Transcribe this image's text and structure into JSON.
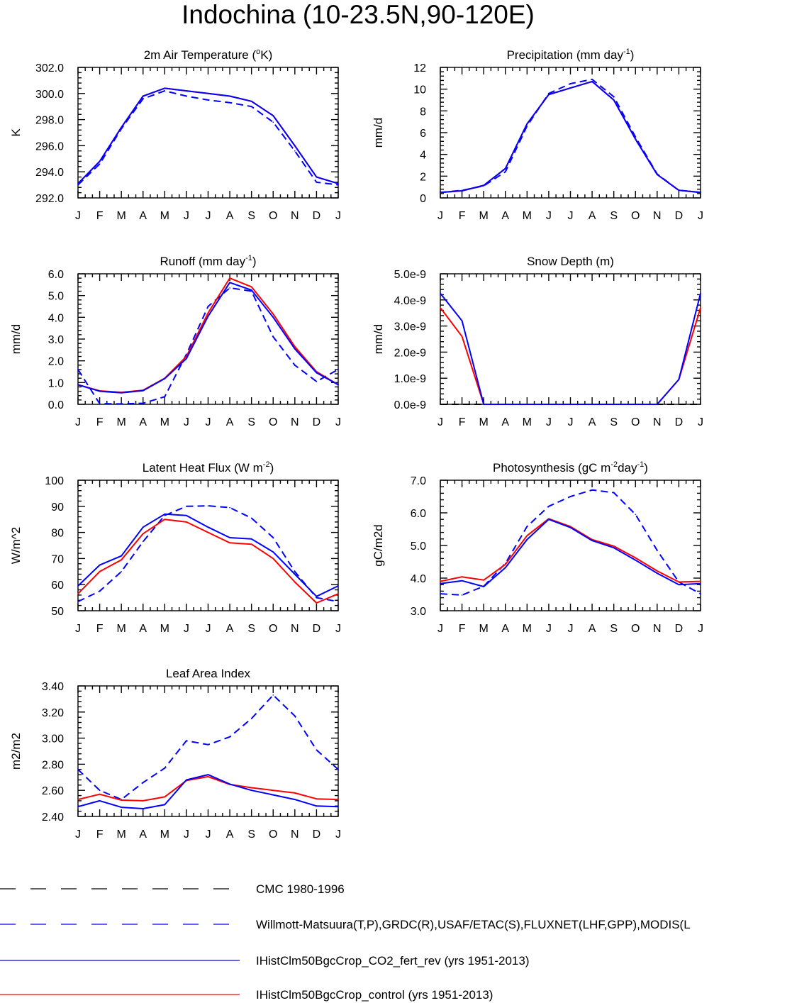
{
  "figure": {
    "title": "Indochina (10-23.5N,90-120E)"
  },
  "colors": {
    "cmc": "#000000",
    "obs": "#0000ff",
    "co2_fert_rev": "#0000ff",
    "control": "#ff0000"
  },
  "legend": [
    {
      "label": "CMC 1980-1996",
      "color": "#000000",
      "dash": true
    },
    {
      "label": "Willmott-Matsuura(T,P),GRDC(R),USAF/ETAC(S),FLUXNET(LHF,GPP),MODIS(L",
      "color": "#0000ff",
      "dash": true
    },
    {
      "label": "IHistClm50BgcCrop_CO2_fert_rev (yrs 1951-2013)",
      "color": "#0000ff",
      "dash": false
    },
    {
      "label": "IHistClm50BgcCrop_control (yrs 1951-2013)",
      "color": "#ff0000",
      "dash": false
    }
  ],
  "chart_data": [
    {
      "type": "line",
      "title": "2m Air Temperature (°K)",
      "title_parts": [
        "2m Air Temperature (",
        "o",
        "K)"
      ],
      "ylabel": "K",
      "xlabel": "",
      "categories": [
        "J",
        "F",
        "M",
        "A",
        "M",
        "J",
        "J",
        "A",
        "S",
        "O",
        "N",
        "D",
        "J"
      ],
      "ylim": [
        292,
        302
      ],
      "yticks": [
        292,
        294,
        296,
        298,
        300,
        302
      ],
      "ytick_labels": [
        "292.0",
        "294.0",
        "296.0",
        "298.0",
        "300.0",
        "302.0"
      ],
      "series": [
        {
          "id": "obs",
          "style": "dashed",
          "color": "#0000ff",
          "values": [
            293.0,
            294.6,
            297.3,
            299.6,
            300.2,
            299.8,
            299.5,
            299.3,
            299.0,
            297.8,
            295.6,
            293.2,
            293.0
          ]
        },
        {
          "id": "control",
          "style": "solid",
          "color": "#ff0000",
          "values": [
            293.1,
            294.8,
            297.4,
            299.8,
            300.4,
            300.2,
            300.0,
            299.8,
            299.4,
            298.3,
            296.0,
            293.6,
            293.1
          ]
        },
        {
          "id": "co2_fert_rev",
          "style": "solid",
          "color": "#0000ff",
          "values": [
            293.1,
            294.8,
            297.4,
            299.8,
            300.4,
            300.2,
            300.0,
            299.8,
            299.4,
            298.3,
            296.0,
            293.6,
            293.1
          ]
        }
      ]
    },
    {
      "type": "line",
      "title": "Precipitation (mm day-1)",
      "title_parts": [
        "Precipitation (mm day",
        "-1",
        ")"
      ],
      "ylabel": "mm/d",
      "xlabel": "",
      "categories": [
        "J",
        "F",
        "M",
        "A",
        "M",
        "J",
        "J",
        "A",
        "S",
        "O",
        "N",
        "D",
        "J"
      ],
      "ylim": [
        0,
        12
      ],
      "yticks": [
        0,
        2,
        4,
        6,
        8,
        10,
        12
      ],
      "ytick_labels": [
        "0",
        "2",
        "4",
        "6",
        "8",
        "10",
        "12"
      ],
      "series": [
        {
          "id": "obs",
          "style": "dashed",
          "color": "#0000ff",
          "values": [
            0.5,
            0.7,
            1.1,
            2.4,
            6.6,
            9.6,
            10.5,
            10.9,
            9.3,
            5.6,
            2.2,
            0.7,
            0.5
          ]
        },
        {
          "id": "control",
          "style": "solid",
          "color": "#ff0000",
          "values": [
            0.5,
            0.65,
            1.15,
            2.7,
            6.8,
            9.5,
            10.1,
            10.7,
            9.0,
            5.4,
            2.15,
            0.7,
            0.5
          ]
        },
        {
          "id": "co2_fert_rev",
          "style": "solid",
          "color": "#0000ff",
          "values": [
            0.5,
            0.65,
            1.15,
            2.7,
            6.8,
            9.5,
            10.1,
            10.7,
            9.0,
            5.4,
            2.15,
            0.7,
            0.5
          ]
        }
      ]
    },
    {
      "type": "line",
      "title": "Runoff (mm day-1)",
      "title_parts": [
        "Runoff (mm day",
        "-1",
        ")"
      ],
      "ylabel": "mm/d",
      "xlabel": "",
      "categories": [
        "J",
        "F",
        "M",
        "A",
        "M",
        "J",
        "J",
        "A",
        "S",
        "O",
        "N",
        "D",
        "J"
      ],
      "ylim": [
        0,
        6
      ],
      "yticks": [
        0,
        1,
        2,
        3,
        4,
        5,
        6
      ],
      "ytick_labels": [
        "0.0",
        "1.0",
        "2.0",
        "3.0",
        "4.0",
        "5.0",
        "6.0"
      ],
      "series": [
        {
          "id": "obs",
          "style": "dashed",
          "color": "#0000ff",
          "values": [
            1.6,
            0.03,
            0.02,
            0.05,
            0.35,
            2.3,
            4.5,
            5.35,
            5.2,
            3.1,
            1.8,
            1.05,
            1.6
          ]
        },
        {
          "id": "control",
          "style": "solid",
          "color": "#ff0000",
          "values": [
            0.9,
            0.62,
            0.55,
            0.65,
            1.2,
            2.2,
            4.2,
            5.8,
            5.4,
            4.15,
            2.65,
            1.5,
            0.9
          ]
        },
        {
          "id": "co2_fert_rev",
          "style": "solid",
          "color": "#0000ff",
          "values": [
            0.9,
            0.6,
            0.53,
            0.63,
            1.18,
            2.1,
            4.05,
            5.6,
            5.25,
            4.0,
            2.55,
            1.45,
            0.9
          ]
        }
      ]
    },
    {
      "type": "line",
      "title": "Snow Depth (m)",
      "title_parts": [
        "Snow Depth (m)",
        "",
        ""
      ],
      "ylabel": "mm/d",
      "xlabel": "",
      "categories": [
        "J",
        "F",
        "M",
        "A",
        "M",
        "J",
        "J",
        "A",
        "S",
        "O",
        "N",
        "D",
        "J"
      ],
      "ylim": [
        0,
        5e-09
      ],
      "yticks": [
        0,
        1e-09,
        2e-09,
        3e-09,
        4e-09,
        5e-09
      ],
      "ytick_labels": [
        "0.0e-9",
        "1.0e-9",
        "2.0e-9",
        "3.0e-9",
        "4.0e-9",
        "5.0e-9"
      ],
      "series": [
        {
          "id": "cmc",
          "style": "dashed",
          "color": "#000000",
          "values": [
            0,
            0,
            0,
            0,
            0,
            0,
            0,
            0,
            0,
            0,
            0,
            0,
            0
          ]
        },
        {
          "id": "control",
          "style": "solid",
          "color": "#ff0000",
          "values": [
            3.7e-09,
            2.6e-09,
            0,
            0,
            0,
            0,
            0,
            0,
            0,
            0,
            0,
            9.5e-10,
            3.7e-09
          ]
        },
        {
          "id": "co2_fert_rev",
          "style": "solid",
          "color": "#0000ff",
          "values": [
            4.25e-09,
            3.2e-09,
            0,
            0,
            0,
            0,
            0,
            0,
            0,
            0,
            0,
            9.5e-10,
            4.25e-09
          ]
        }
      ]
    },
    {
      "type": "line",
      "title": "Latent Heat Flux (W m-2)",
      "title_parts": [
        "Latent Heat Flux (W m",
        "-2",
        ")"
      ],
      "ylabel": "W/m^2",
      "xlabel": "",
      "categories": [
        "J",
        "F",
        "M",
        "A",
        "M",
        "J",
        "J",
        "A",
        "S",
        "O",
        "N",
        "D",
        "J"
      ],
      "ylim": [
        50,
        100
      ],
      "yticks": [
        50,
        60,
        70,
        80,
        90,
        100
      ],
      "ytick_labels": [
        "50",
        "60",
        "70",
        "80",
        "90",
        "100"
      ],
      "series": [
        {
          "id": "obs",
          "style": "dashed",
          "color": "#0000ff",
          "values": [
            53.5,
            57.5,
            65.0,
            76.5,
            86.5,
            90.0,
            90.2,
            89.5,
            85.5,
            78.0,
            65.0,
            55.0,
            53.5
          ]
        },
        {
          "id": "control",
          "style": "solid",
          "color": "#ff0000",
          "values": [
            56.5,
            65.0,
            69.5,
            79.5,
            85.0,
            84.0,
            80.0,
            76.0,
            75.5,
            70.0,
            61.0,
            53.0,
            56.5
          ]
        },
        {
          "id": "co2_fert_rev",
          "style": "solid",
          "color": "#0000ff",
          "values": [
            59.5,
            67.5,
            71.0,
            82.0,
            87.0,
            86.5,
            82.0,
            78.0,
            77.5,
            72.5,
            64.0,
            55.5,
            59.5
          ]
        }
      ]
    },
    {
      "type": "line",
      "title": "Photosynthesis (gC m-2day-1)",
      "title_parts": [
        "Photosynthesis (gC m",
        "-2",
        "day",
        "-1",
        ")"
      ],
      "ylabel": "gC/m2d",
      "xlabel": "",
      "categories": [
        "J",
        "F",
        "M",
        "A",
        "M",
        "J",
        "J",
        "A",
        "S",
        "O",
        "N",
        "D",
        "J"
      ],
      "ylim": [
        3,
        7
      ],
      "yticks": [
        3,
        4,
        5,
        6,
        7
      ],
      "ytick_labels": [
        "3.0",
        "4.0",
        "5.0",
        "6.0",
        "7.0"
      ],
      "series": [
        {
          "id": "obs",
          "style": "dashed",
          "color": "#0000ff",
          "values": [
            3.52,
            3.48,
            3.75,
            4.45,
            5.58,
            6.2,
            6.5,
            6.7,
            6.62,
            5.95,
            4.85,
            3.88,
            3.52
          ]
        },
        {
          "id": "control",
          "style": "solid",
          "color": "#ff0000",
          "values": [
            3.9,
            4.04,
            3.94,
            4.42,
            5.3,
            5.82,
            5.58,
            5.18,
            4.98,
            4.62,
            4.22,
            3.88,
            3.9
          ]
        },
        {
          "id": "co2_fert_rev",
          "style": "solid",
          "color": "#0000ff",
          "values": [
            3.83,
            3.92,
            3.74,
            4.32,
            5.18,
            5.8,
            5.55,
            5.15,
            4.93,
            4.55,
            4.15,
            3.8,
            3.83
          ]
        }
      ]
    },
    {
      "type": "line",
      "title": "Leaf Area Index",
      "title_parts": [
        "Leaf Area Index",
        "",
        ""
      ],
      "ylabel": "m2/m2",
      "xlabel": "",
      "categories": [
        "J",
        "F",
        "M",
        "A",
        "M",
        "J",
        "J",
        "A",
        "S",
        "O",
        "N",
        "D",
        "J"
      ],
      "ylim": [
        2.4,
        3.4
      ],
      "yticks": [
        2.4,
        2.6,
        2.8,
        3.0,
        3.2,
        3.4
      ],
      "ytick_labels": [
        "2.40",
        "2.60",
        "2.80",
        "3.00",
        "3.20",
        "3.40"
      ],
      "series": [
        {
          "id": "obs",
          "style": "dashed",
          "color": "#0000ff",
          "values": [
            2.76,
            2.6,
            2.53,
            2.66,
            2.77,
            2.98,
            2.95,
            3.01,
            3.15,
            3.33,
            3.17,
            2.91,
            2.76
          ]
        },
        {
          "id": "control",
          "style": "solid",
          "color": "#ff0000",
          "values": [
            2.53,
            2.57,
            2.525,
            2.52,
            2.55,
            2.675,
            2.705,
            2.645,
            2.62,
            2.6,
            2.58,
            2.535,
            2.53
          ]
        },
        {
          "id": "co2_fert_rev",
          "style": "solid",
          "color": "#0000ff",
          "values": [
            2.475,
            2.52,
            2.47,
            2.46,
            2.49,
            2.68,
            2.72,
            2.648,
            2.6,
            2.565,
            2.53,
            2.48,
            2.475
          ]
        }
      ]
    }
  ]
}
